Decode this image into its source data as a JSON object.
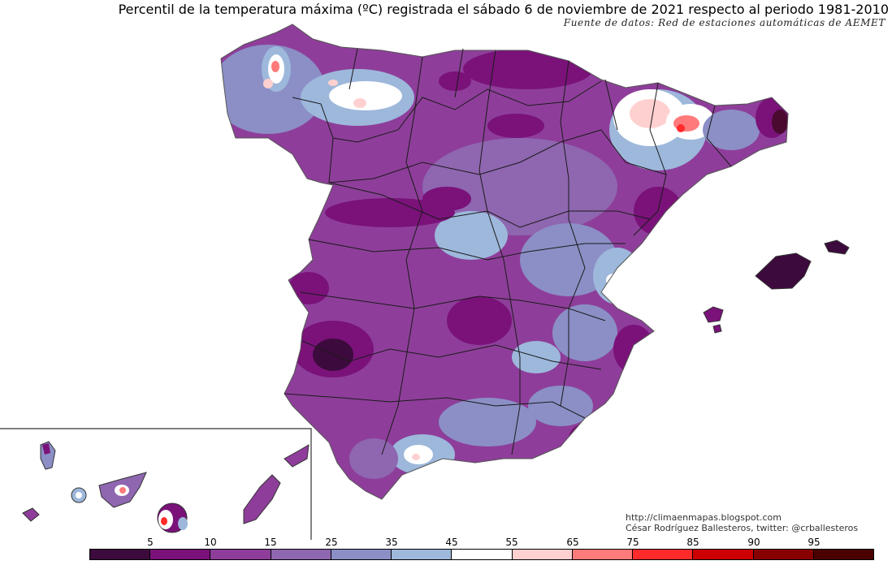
{
  "title": "Percentil de la temperatura máxima (ºC) registrada el sábado 6 de noviembre de 2021 respecto al periodo 1981-2010",
  "source": "Fuente de datos: Red de estaciones automáticas de AEMET",
  "credits": {
    "url": "http://climaenmapas.blogspot.com",
    "author": "César Rodríguez Ballesteros, twitter: @crballesteros"
  },
  "legend": {
    "labels": [
      "5",
      "10",
      "15",
      "25",
      "35",
      "45",
      "55",
      "65",
      "75",
      "85",
      "90",
      "95"
    ],
    "colors": [
      "#3d0a3d",
      "#7a127a",
      "#8e3e9a",
      "#8f66b0",
      "#8b8fc6",
      "#9db8db",
      "#ffffff",
      "#ffd0d0",
      "#ff7a7a",
      "#ff2a2a",
      "#cc0000",
      "#880000",
      "#4a0000"
    ]
  }
}
